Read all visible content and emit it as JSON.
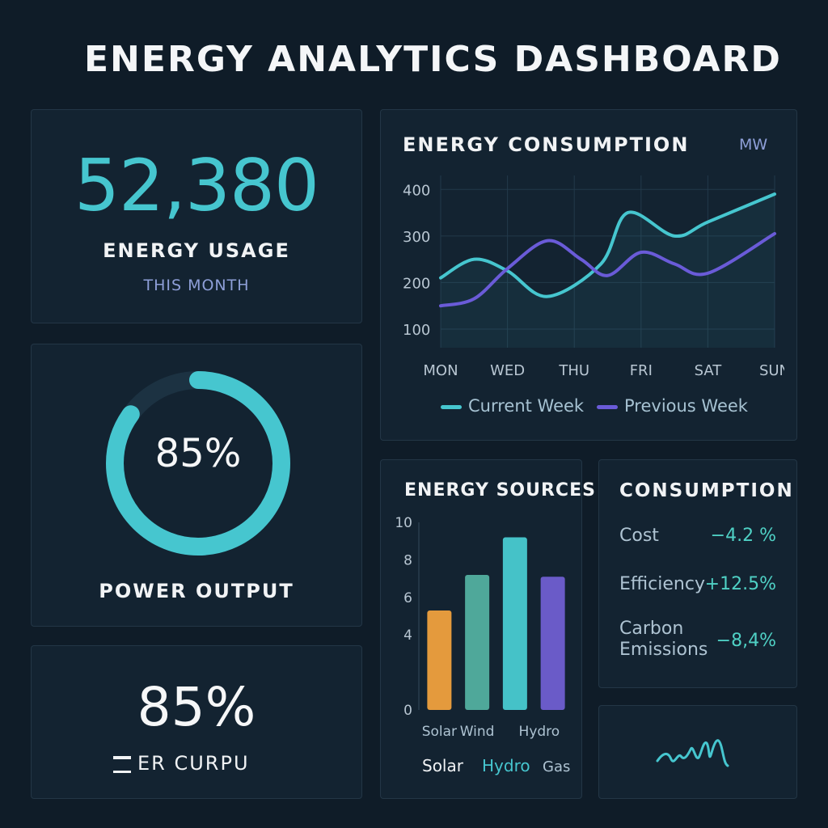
{
  "page": {
    "title": "ENERGY ANALYTICS DASHBOARD"
  },
  "usage": {
    "value": "52,380",
    "label": "ENERGY USAGE",
    "sublabel": "THIS MONTH"
  },
  "power": {
    "percent_text": "85%",
    "percent": 85,
    "label": "POWER OUTPUT"
  },
  "power2": {
    "percent_text": "85%",
    "label": "ER CURPU"
  },
  "colors": {
    "teal": "#46c6cf",
    "purple": "#6a5bd8",
    "orange": "#e49a3d",
    "green": "#4fa89a",
    "cyan": "#45c2c8",
    "violet": "#6a5bc8"
  },
  "chart_data": [
    {
      "type": "line",
      "title": "ENERGY CONSUMPTION",
      "unit": "MW",
      "categories": [
        "MON",
        "WED",
        "THU",
        "FRI",
        "SAT",
        "SUN"
      ],
      "x": [
        0,
        1,
        2,
        3,
        4,
        5
      ],
      "ylim": [
        60,
        430
      ],
      "yticks": [
        100,
        200,
        300,
        400
      ],
      "grid": true,
      "series": [
        {
          "name": "Current Week",
          "x": [
            0,
            0.5,
            1,
            1.6,
            2.4,
            2.8,
            3.5,
            4.0,
            5.0
          ],
          "values": [
            210,
            250,
            225,
            170,
            240,
            350,
            300,
            330,
            390
          ]
        },
        {
          "name": "Previous Week",
          "x": [
            0,
            0.5,
            1,
            1.6,
            2.1,
            2.5,
            3.0,
            3.5,
            4.0,
            5.0
          ],
          "values": [
            150,
            165,
            230,
            290,
            250,
            215,
            265,
            240,
            220,
            305
          ]
        }
      ],
      "legend": [
        "Current Week",
        "Previous Week"
      ]
    },
    {
      "type": "bar",
      "title": "ENERGY SOURCES",
      "categories": [
        "Solar",
        "Wind",
        "Hydro",
        "Gas"
      ],
      "tick_labels": [
        "Solar",
        "Wind",
        "Hydro"
      ],
      "values": [
        5.3,
        7.2,
        9.2,
        7.1
      ],
      "ylim": [
        0,
        10
      ],
      "yticks": [
        0,
        4,
        6,
        8,
        10
      ],
      "legend": [
        "Solar",
        "Hydro",
        "Gas"
      ]
    }
  ],
  "metrics": {
    "title": "CONSUMPTION",
    "items": [
      {
        "label": "Cost",
        "value": "−4.2 %"
      },
      {
        "label": "Efficiency",
        "value": "+12.5%"
      },
      {
        "label": "Carbon Emissions",
        "value": "−8,4%"
      }
    ]
  }
}
